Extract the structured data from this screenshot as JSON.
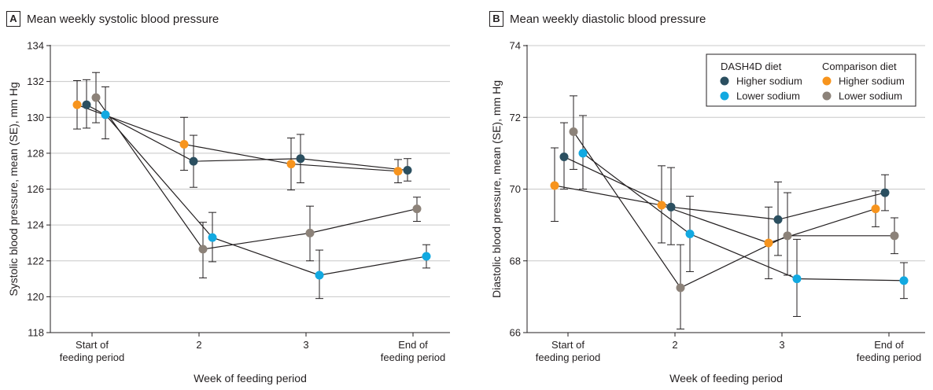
{
  "colors": {
    "dash_higher": "#2b4f60",
    "dash_lower": "#12a9e1",
    "comp_higher": "#f7941d",
    "comp_lower": "#8c8279",
    "grid": "#c8c8c8",
    "axis": "#231f20"
  },
  "chart_data": [
    {
      "panel": "A",
      "type": "line",
      "title": "Mean weekly systolic blood pressure",
      "xlabel": "Week of feeding period",
      "ylabel": "Systolic blood pressure, mean (SE), mm Hg",
      "categories": [
        [
          "Start of",
          "feeding period"
        ],
        [
          "2"
        ],
        [
          "3"
        ],
        [
          "End of",
          "feeding period"
        ]
      ],
      "ylim": [
        118,
        134
      ],
      "yticks": [
        118,
        120,
        122,
        124,
        126,
        128,
        130,
        132,
        134
      ],
      "grid": true,
      "series": [
        {
          "key": "dash_higher",
          "values": [
            130.7,
            127.55,
            127.7,
            127.05
          ],
          "err_low": [
            129.4,
            126.1,
            126.35,
            126.45
          ],
          "err_high": [
            132.1,
            129.0,
            129.05,
            127.7
          ]
        },
        {
          "key": "dash_lower",
          "values": [
            130.15,
            123.3,
            121.2,
            122.25
          ],
          "err_low": [
            128.8,
            121.95,
            119.9,
            121.6
          ],
          "err_high": [
            131.7,
            124.7,
            122.6,
            122.9
          ]
        },
        {
          "key": "comp_higher",
          "values": [
            130.7,
            128.5,
            127.4,
            127.0
          ],
          "err_low": [
            129.35,
            127.05,
            125.95,
            126.35
          ],
          "err_high": [
            132.05,
            130.0,
            128.85,
            127.65
          ]
        },
        {
          "key": "comp_lower",
          "values": [
            131.1,
            122.65,
            123.55,
            124.9
          ],
          "err_low": [
            129.7,
            121.05,
            122.0,
            124.2
          ],
          "err_high": [
            132.5,
            124.15,
            125.05,
            125.55
          ]
        }
      ]
    },
    {
      "panel": "B",
      "type": "line",
      "title": "Mean weekly diastolic blood pressure",
      "xlabel": "Week of feeding period",
      "ylabel": "Diastolic blood pressure, mean (SE), mm Hg",
      "categories": [
        [
          "Start of",
          "feeding period"
        ],
        [
          "2"
        ],
        [
          "3"
        ],
        [
          "End of",
          "feeding period"
        ]
      ],
      "ylim": [
        66,
        74
      ],
      "yticks": [
        66,
        68,
        70,
        72,
        74
      ],
      "grid": true,
      "legend_position": "top-right",
      "legend": {
        "group1_title": "DASH4D diet",
        "group2_title": "Comparison diet",
        "items": [
          {
            "key": "dash_higher",
            "label": "Higher sodium"
          },
          {
            "key": "dash_lower",
            "label": "Lower sodium"
          },
          {
            "key": "comp_higher",
            "label": "Higher sodium"
          },
          {
            "key": "comp_lower",
            "label": "Lower sodium"
          }
        ]
      },
      "series": [
        {
          "key": "dash_higher",
          "values": [
            70.9,
            69.5,
            69.15,
            69.9
          ],
          "err_low": [
            70.0,
            68.45,
            68.15,
            69.4
          ],
          "err_high": [
            71.85,
            70.6,
            70.2,
            70.4
          ]
        },
        {
          "key": "dash_lower",
          "values": [
            71.0,
            68.75,
            67.5,
            67.45
          ],
          "err_low": [
            70.0,
            67.7,
            66.45,
            66.95
          ],
          "err_high": [
            72.05,
            69.8,
            68.6,
            67.95
          ]
        },
        {
          "key": "comp_higher",
          "values": [
            70.1,
            69.55,
            68.5,
            69.45
          ],
          "err_low": [
            69.1,
            68.5,
            67.5,
            68.95
          ],
          "err_high": [
            71.15,
            70.65,
            69.5,
            69.95
          ]
        },
        {
          "key": "comp_lower",
          "values": [
            71.6,
            67.25,
            68.7,
            68.7
          ],
          "err_low": [
            70.55,
            66.1,
            67.6,
            68.2
          ],
          "err_high": [
            72.6,
            68.45,
            69.9,
            69.2
          ]
        }
      ]
    }
  ]
}
